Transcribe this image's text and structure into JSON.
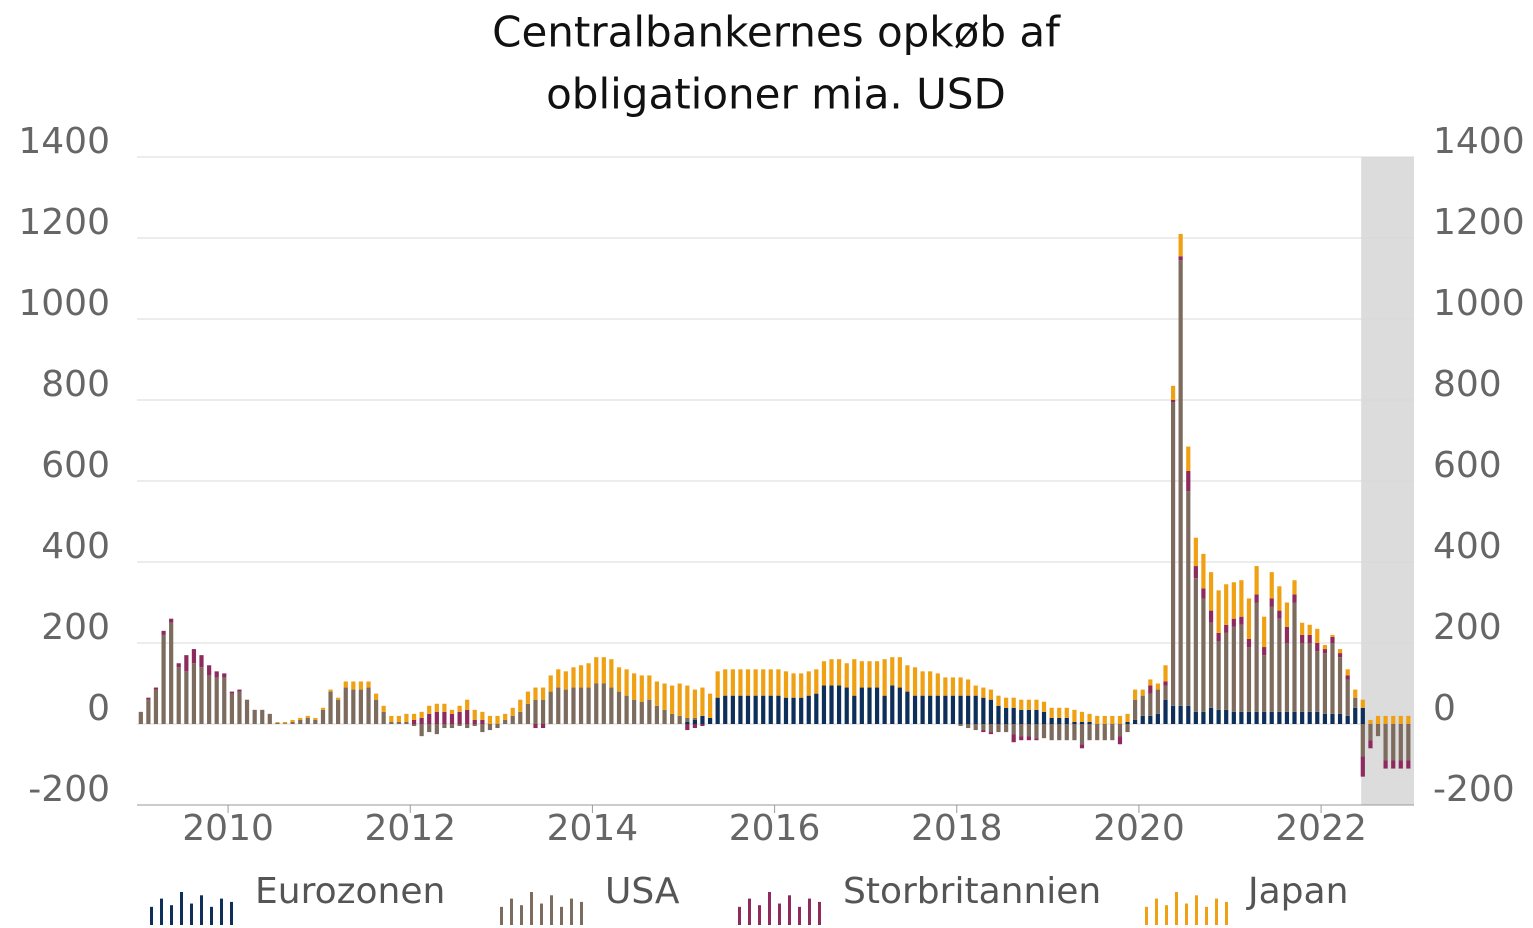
{
  "chart_data": {
    "type": "stacked_bar",
    "title": [
      "Centralbankernes opkøb af",
      "obligationer mia. USD"
    ],
    "x": [
      2009.042,
      2009.125,
      2009.208,
      2009.292,
      2009.375,
      2009.458,
      2009.542,
      2009.625,
      2009.708,
      2009.792,
      2009.875,
      2009.958,
      2010.042,
      2010.125,
      2010.208,
      2010.292,
      2010.375,
      2010.458,
      2010.542,
      2010.625,
      2010.708,
      2010.792,
      2010.875,
      2010.958,
      2011.042,
      2011.125,
      2011.208,
      2011.292,
      2011.375,
      2011.458,
      2011.542,
      2011.625,
      2011.708,
      2011.792,
      2011.875,
      2011.958,
      2012.042,
      2012.125,
      2012.208,
      2012.292,
      2012.375,
      2012.458,
      2012.542,
      2012.625,
      2012.708,
      2012.792,
      2012.875,
      2012.958,
      2013.042,
      2013.125,
      2013.208,
      2013.292,
      2013.375,
      2013.458,
      2013.542,
      2013.625,
      2013.708,
      2013.792,
      2013.875,
      2013.958,
      2014.042,
      2014.125,
      2014.208,
      2014.292,
      2014.375,
      2014.458,
      2014.542,
      2014.625,
      2014.708,
      2014.792,
      2014.875,
      2014.958,
      2015.042,
      2015.125,
      2015.208,
      2015.292,
      2015.375,
      2015.458,
      2015.542,
      2015.625,
      2015.708,
      2015.792,
      2015.875,
      2015.958,
      2016.042,
      2016.125,
      2016.208,
      2016.292,
      2016.375,
      2016.458,
      2016.542,
      2016.625,
      2016.708,
      2016.792,
      2016.875,
      2016.958,
      2017.042,
      2017.125,
      2017.208,
      2017.292,
      2017.375,
      2017.458,
      2017.542,
      2017.625,
      2017.708,
      2017.792,
      2017.875,
      2017.958,
      2018.042,
      2018.125,
      2018.208,
      2018.292,
      2018.375,
      2018.458,
      2018.542,
      2018.625,
      2018.708,
      2018.792,
      2018.875,
      2018.958,
      2019.042,
      2019.125,
      2019.208,
      2019.292,
      2019.375,
      2019.458,
      2019.542,
      2019.625,
      2019.708,
      2019.792,
      2019.875,
      2019.958,
      2020.042,
      2020.125,
      2020.208,
      2020.292,
      2020.375,
      2020.458,
      2020.542,
      2020.625,
      2020.708,
      2020.792,
      2020.875,
      2020.958,
      2021.042,
      2021.125,
      2021.208,
      2021.292,
      2021.375,
      2021.458,
      2021.542,
      2021.625,
      2021.708,
      2021.792,
      2021.875,
      2021.958,
      2022.042,
      2022.125,
      2022.208,
      2022.292,
      2022.375,
      2022.458,
      2022.542,
      2022.625,
      2022.708,
      2022.792,
      2022.875,
      2022.958
    ],
    "series": [
      {
        "name": "Eurozonen",
        "color": "#0d2f5a",
        "values": [
          0,
          0,
          0,
          0,
          0,
          0,
          0,
          0,
          0,
          0,
          0,
          0,
          0,
          0,
          0,
          0,
          0,
          0,
          0,
          0,
          0,
          0,
          0,
          0,
          0,
          0,
          0,
          0,
          0,
          0,
          0,
          0,
          0,
          0,
          0,
          0,
          0,
          0,
          0,
          0,
          0,
          0,
          0,
          0,
          0,
          0,
          0,
          0,
          0,
          0,
          0,
          0,
          0,
          0,
          0,
          0,
          0,
          0,
          0,
          0,
          0,
          0,
          0,
          0,
          0,
          0,
          0,
          0,
          0,
          0,
          0,
          0,
          5,
          10,
          20,
          15,
          65,
          70,
          70,
          70,
          70,
          70,
          70,
          70,
          70,
          65,
          65,
          65,
          70,
          75,
          95,
          95,
          95,
          90,
          70,
          90,
          90,
          90,
          70,
          95,
          90,
          80,
          70,
          70,
          70,
          70,
          70,
          70,
          70,
          70,
          70,
          65,
          60,
          45,
          40,
          40,
          35,
          35,
          35,
          30,
          15,
          15,
          15,
          5,
          5,
          5,
          0,
          0,
          0,
          0,
          5,
          10,
          20,
          20,
          25,
          60,
          45,
          45,
          45,
          30,
          30,
          40,
          35,
          35,
          30,
          30,
          30,
          30,
          30,
          30,
          30,
          30,
          30,
          30,
          30,
          30,
          25,
          25,
          25,
          20,
          40,
          40,
          0,
          0,
          0,
          0,
          0,
          0
        ]
      },
      {
        "name": "USA",
        "color": "#7d6b5d",
        "values": [
          30,
          60,
          85,
          220,
          250,
          140,
          130,
          150,
          140,
          120,
          115,
          115,
          75,
          80,
          60,
          35,
          35,
          25,
          3,
          2,
          5,
          10,
          15,
          10,
          35,
          80,
          60,
          90,
          85,
          85,
          90,
          60,
          30,
          5,
          5,
          5,
          -5,
          -30,
          -20,
          -25,
          -10,
          -10,
          -5,
          -10,
          -5,
          -20,
          -15,
          -10,
          10,
          20,
          30,
          50,
          60,
          60,
          80,
          90,
          85,
          90,
          90,
          90,
          100,
          100,
          90,
          80,
          70,
          60,
          55,
          60,
          45,
          35,
          25,
          20,
          10,
          5,
          0,
          0,
          0,
          0,
          0,
          0,
          0,
          0,
          0,
          0,
          0,
          0,
          0,
          0,
          0,
          0,
          0,
          0,
          0,
          0,
          0,
          0,
          0,
          0,
          0,
          0,
          0,
          0,
          0,
          0,
          0,
          0,
          0,
          0,
          -5,
          -10,
          -15,
          -15,
          -20,
          -20,
          -20,
          -25,
          -30,
          -30,
          -35,
          -35,
          -40,
          -40,
          -40,
          -40,
          -50,
          -40,
          -40,
          -40,
          -40,
          -30,
          -20,
          50,
          50,
          55,
          60,
          35,
          750,
          1100,
          530,
          330,
          280,
          210,
          170,
          190,
          210,
          215,
          160,
          270,
          140,
          260,
          230,
          170,
          270,
          170,
          170,
          150,
          150,
          175,
          140,
          90,
          25,
          -80,
          -40,
          -30,
          -90,
          -90,
          -90,
          -90
        ]
      },
      {
        "name": "Storbritannien",
        "color": "#8e2a5e",
        "values": [
          0,
          5,
          5,
          10,
          10,
          10,
          40,
          35,
          30,
          25,
          15,
          10,
          5,
          5,
          0,
          0,
          0,
          0,
          0,
          0,
          0,
          0,
          0,
          0,
          0,
          0,
          0,
          0,
          0,
          0,
          0,
          0,
          0,
          0,
          0,
          0,
          10,
          15,
          25,
          30,
          30,
          25,
          30,
          35,
          10,
          10,
          0,
          0,
          0,
          0,
          0,
          0,
          -10,
          -10,
          0,
          0,
          0,
          0,
          0,
          0,
          0,
          0,
          0,
          0,
          0,
          0,
          0,
          0,
          0,
          0,
          0,
          0,
          -15,
          -10,
          -5,
          0,
          0,
          0,
          0,
          0,
          0,
          0,
          0,
          0,
          0,
          0,
          0,
          0,
          0,
          0,
          0,
          0,
          0,
          0,
          0,
          0,
          0,
          0,
          0,
          0,
          0,
          0,
          0,
          0,
          0,
          0,
          0,
          0,
          0,
          0,
          0,
          -5,
          -5,
          0,
          0,
          -20,
          -10,
          -10,
          -5,
          0,
          0,
          0,
          0,
          0,
          -10,
          0,
          0,
          0,
          0,
          -20,
          0,
          0,
          0,
          20,
          0,
          10,
          5,
          10,
          50,
          30,
          25,
          30,
          20,
          20,
          20,
          20,
          20,
          20,
          20,
          20,
          20,
          40,
          20,
          20,
          20,
          20,
          10,
          15,
          10,
          10,
          0,
          -50,
          -20,
          0,
          -20,
          -20,
          -20,
          -20
        ]
      },
      {
        "name": "Japan",
        "color": "#f0a013",
        "values": [
          0,
          0,
          0,
          0,
          0,
          0,
          0,
          0,
          0,
          0,
          0,
          0,
          0,
          0,
          0,
          0,
          0,
          0,
          2,
          3,
          5,
          5,
          5,
          5,
          5,
          5,
          5,
          15,
          20,
          20,
          15,
          15,
          15,
          15,
          15,
          20,
          15,
          15,
          20,
          20,
          20,
          10,
          15,
          25,
          25,
          20,
          20,
          20,
          15,
          20,
          30,
          30,
          30,
          30,
          40,
          45,
          45,
          50,
          55,
          60,
          65,
          65,
          70,
          60,
          65,
          65,
          65,
          60,
          60,
          65,
          70,
          80,
          80,
          70,
          70,
          60,
          65,
          65,
          65,
          65,
          65,
          65,
          65,
          65,
          65,
          65,
          60,
          60,
          60,
          60,
          60,
          65,
          65,
          60,
          90,
          65,
          65,
          65,
          90,
          70,
          75,
          65,
          70,
          60,
          60,
          55,
          45,
          45,
          45,
          40,
          25,
          25,
          25,
          25,
          25,
          25,
          25,
          25,
          25,
          25,
          25,
          25,
          25,
          30,
          25,
          20,
          20,
          20,
          20,
          20,
          20,
          25,
          15,
          15,
          15,
          40,
          35,
          55,
          60,
          70,
          85,
          95,
          105,
          100,
          90,
          90,
          100,
          70,
          75,
          65,
          60,
          60,
          35,
          30,
          25,
          35,
          10,
          5,
          10,
          15,
          20,
          20,
          10,
          20,
          20,
          20,
          20,
          20
        ]
      }
    ],
    "xlim": [
      2009,
      2023.02
    ],
    "xticks": [
      2010,
      2012,
      2014,
      2016,
      2018,
      2020,
      2022
    ],
    "ylim": [
      -200,
      1400
    ],
    "yticks": [
      -200,
      0,
      200,
      400,
      600,
      800,
      1000,
      1200,
      1400
    ],
    "y2lim": [
      -200,
      1400
    ],
    "y2ticks": [
      -200,
      0,
      200,
      400,
      600,
      800,
      1000,
      1200,
      1400
    ],
    "shaded_x": [
      2022.44,
      2023.02
    ],
    "shade_color": "#dcdcdc",
    "grid": true,
    "legend": "bottom"
  }
}
